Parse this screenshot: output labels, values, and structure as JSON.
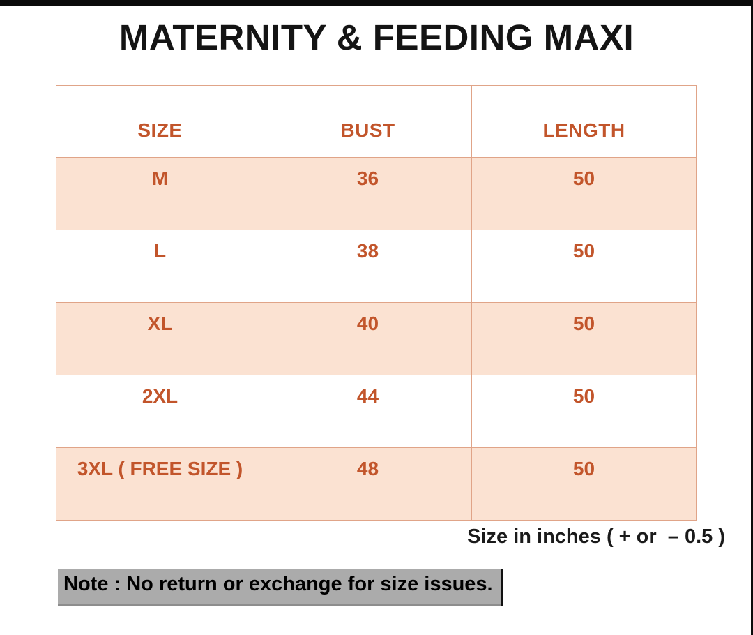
{
  "title": "MATERNITY & FEEDING MAXI",
  "size_chart": {
    "columns": [
      "SIZE",
      "BUST",
      "LENGTH"
    ],
    "rows": [
      {
        "size": "M",
        "bust": "36",
        "length": "50"
      },
      {
        "size": "L",
        "bust": "38",
        "length": "50"
      },
      {
        "size": "XL",
        "bust": "40",
        "length": "50"
      },
      {
        "size": "2XL",
        "bust": "44",
        "length": "50"
      },
      {
        "size": "3XL ( FREE SIZE )",
        "bust": "48",
        "length": "50"
      }
    ]
  },
  "footnote": "Size in inches ( + or  – 0.5 )",
  "note": {
    "label": "Note :",
    "text": "No return or exchange for size issues."
  },
  "colors": {
    "accent_text": "#c2552b",
    "row_highlight": "#fbe2d2",
    "table_border": "#e0a488",
    "title_text": "#141414",
    "note_highlight": "#ababab",
    "note_underline": "#44546a",
    "edge_bar": "#0b0b0b"
  }
}
